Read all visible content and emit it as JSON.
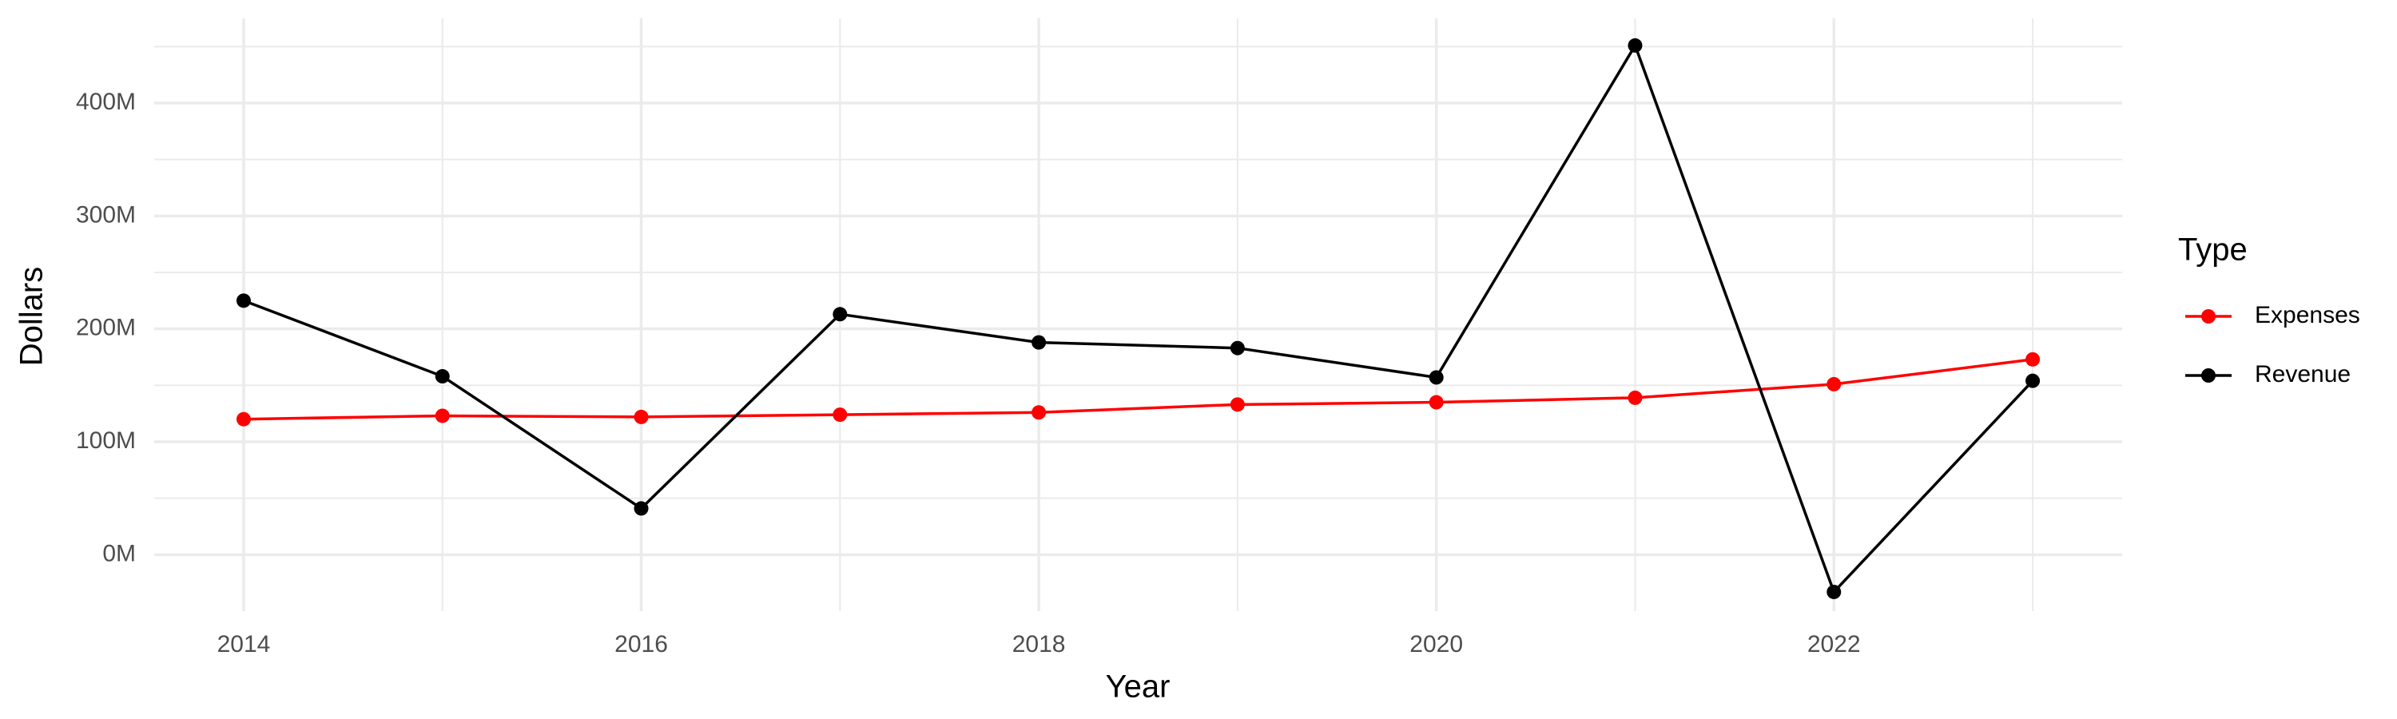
{
  "chart_data": {
    "type": "line",
    "x_label": "Year",
    "y_label": "Dollars",
    "legend_title": "Type",
    "legend_position": "right",
    "grid": true,
    "x": [
      2014,
      2015,
      2016,
      2017,
      2018,
      2019,
      2020,
      2021,
      2022,
      2023
    ],
    "series": [
      {
        "name": "Expenses",
        "color": "#ff0000",
        "values": [
          120000000,
          123000000,
          122000000,
          124000000,
          126000000,
          133000000,
          135000000,
          139000000,
          151000000,
          173000000
        ]
      },
      {
        "name": "Revenue",
        "color": "#000000",
        "values": [
          225000000,
          158000000,
          41000000,
          213000000,
          188000000,
          183000000,
          157000000,
          451000000,
          -33000000,
          154000000
        ]
      }
    ],
    "xlim": [
      2013.55,
      2023.45
    ],
    "xticks": [
      2014,
      2016,
      2018,
      2020,
      2022
    ],
    "ylim": [
      -50000000,
      475000000
    ],
    "yticks": [
      {
        "value": 0,
        "label": "0M"
      },
      {
        "value": 100000000,
        "label": "100M"
      },
      {
        "value": 200000000,
        "label": "200M"
      },
      {
        "value": 300000000,
        "label": "300M"
      },
      {
        "value": 400000000,
        "label": "400M"
      }
    ]
  }
}
